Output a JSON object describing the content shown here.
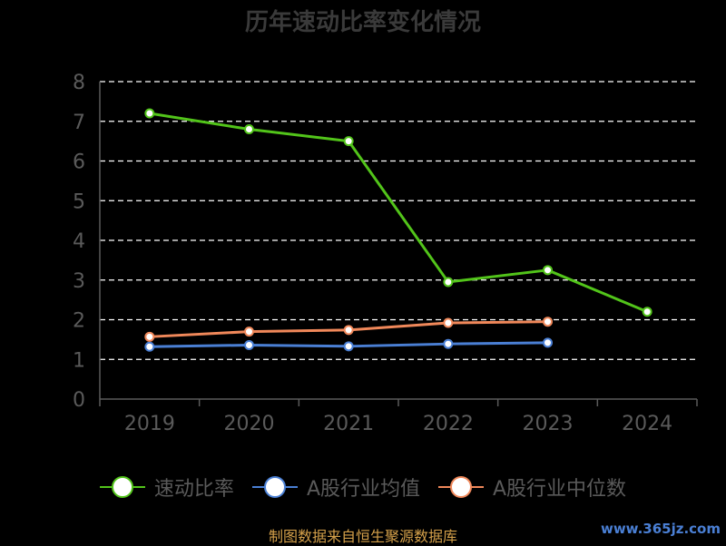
{
  "chart_data": {
    "type": "line",
    "title": "历年速动比率变化情况",
    "categories": [
      "2019",
      "2020",
      "2021",
      "2022",
      "2023",
      "2024"
    ],
    "ylim": [
      0,
      8
    ],
    "yticks": [
      0,
      1,
      2,
      3,
      4,
      5,
      6,
      7,
      8
    ],
    "grid": true,
    "legend_position": "bottom",
    "series": [
      {
        "name": "速动比率",
        "color": "#52c41a",
        "values": [
          7.2,
          6.8,
          6.5,
          2.95,
          3.25,
          2.2
        ]
      },
      {
        "name": "A股行业均值",
        "color": "#4a7fd4",
        "values": [
          1.32,
          1.36,
          1.33,
          1.39,
          1.42,
          null
        ]
      },
      {
        "name": "A股行业中位数",
        "color": "#f0885a",
        "values": [
          1.57,
          1.7,
          1.74,
          1.92,
          1.95,
          null
        ]
      }
    ]
  },
  "footer": {
    "source": "制图数据来自恒生聚源数据库"
  },
  "watermark": {
    "text": "www.365jz.com"
  }
}
